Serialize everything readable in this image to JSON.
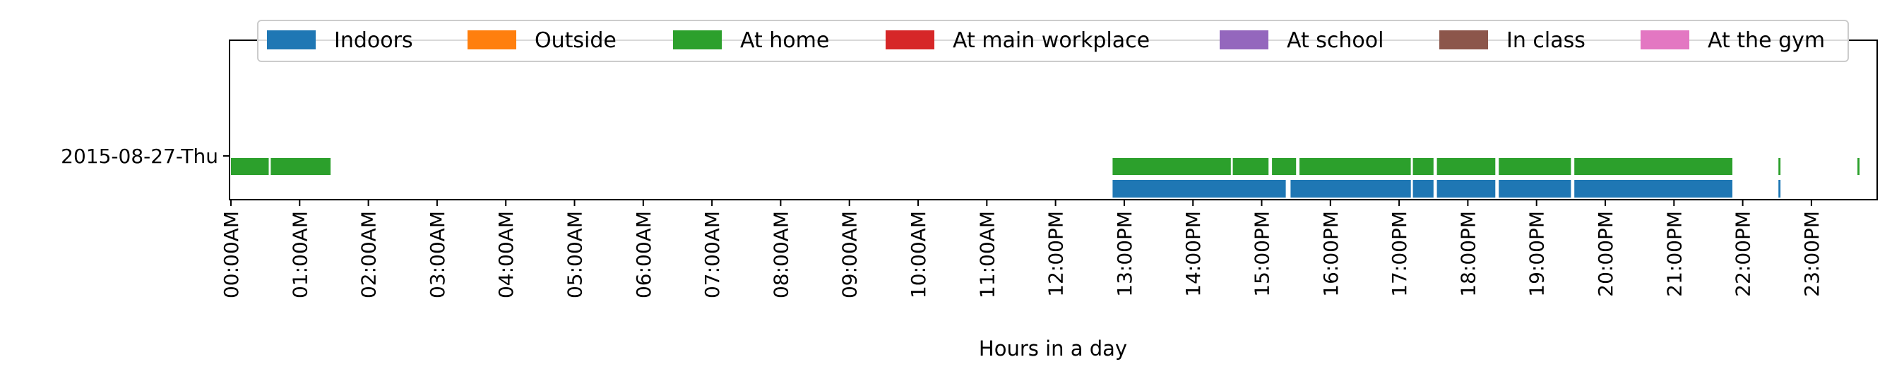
{
  "chart_data": {
    "type": "broken-barh",
    "title": "",
    "xlabel": "Hours in a day",
    "ylabel": "",
    "xlim_hours": [
      0,
      24
    ],
    "grid": false,
    "legend_location": "top",
    "y_categories": [
      "2015-08-27-Thu"
    ],
    "x_tick_labels": [
      "00:00AM",
      "01:00AM",
      "02:00AM",
      "03:00AM",
      "04:00AM",
      "05:00AM",
      "06:00AM",
      "07:00AM",
      "08:00AM",
      "09:00AM",
      "10:00AM",
      "11:00AM",
      "12:00PM",
      "13:00PM",
      "14:00PM",
      "15:00PM",
      "16:00PM",
      "17:00PM",
      "18:00PM",
      "19:00PM",
      "20:00PM",
      "21:00PM",
      "22:00PM",
      "23:00PM"
    ],
    "series": [
      {
        "name": "Indoors",
        "color": "#1f77b4",
        "segments": [
          [
            12.83,
            15.35
          ],
          [
            15.42,
            17.17
          ],
          [
            17.2,
            17.5
          ],
          [
            17.55,
            18.4
          ],
          [
            18.45,
            19.5
          ],
          [
            19.55,
            21.85
          ],
          [
            22.52,
            22.55
          ]
        ]
      },
      {
        "name": "Outside",
        "color": "#ff7f0e",
        "segments": []
      },
      {
        "name": "At home",
        "color": "#2ca02c",
        "segments": [
          [
            0.0,
            0.55
          ],
          [
            0.58,
            1.45
          ],
          [
            12.83,
            14.55
          ],
          [
            14.58,
            15.1
          ],
          [
            15.15,
            15.5
          ],
          [
            15.55,
            17.17
          ],
          [
            17.2,
            17.5
          ],
          [
            17.55,
            18.4
          ],
          [
            18.45,
            19.5
          ],
          [
            19.55,
            21.85
          ],
          [
            22.52,
            22.55
          ],
          [
            23.67,
            23.7
          ]
        ]
      },
      {
        "name": "At main workplace",
        "color": "#d62728",
        "segments": []
      },
      {
        "name": "At school",
        "color": "#9467bd",
        "segments": []
      },
      {
        "name": "In class",
        "color": "#8c564b",
        "segments": []
      },
      {
        "name": "At the gym",
        "color": "#e377c2",
        "segments": []
      }
    ]
  }
}
